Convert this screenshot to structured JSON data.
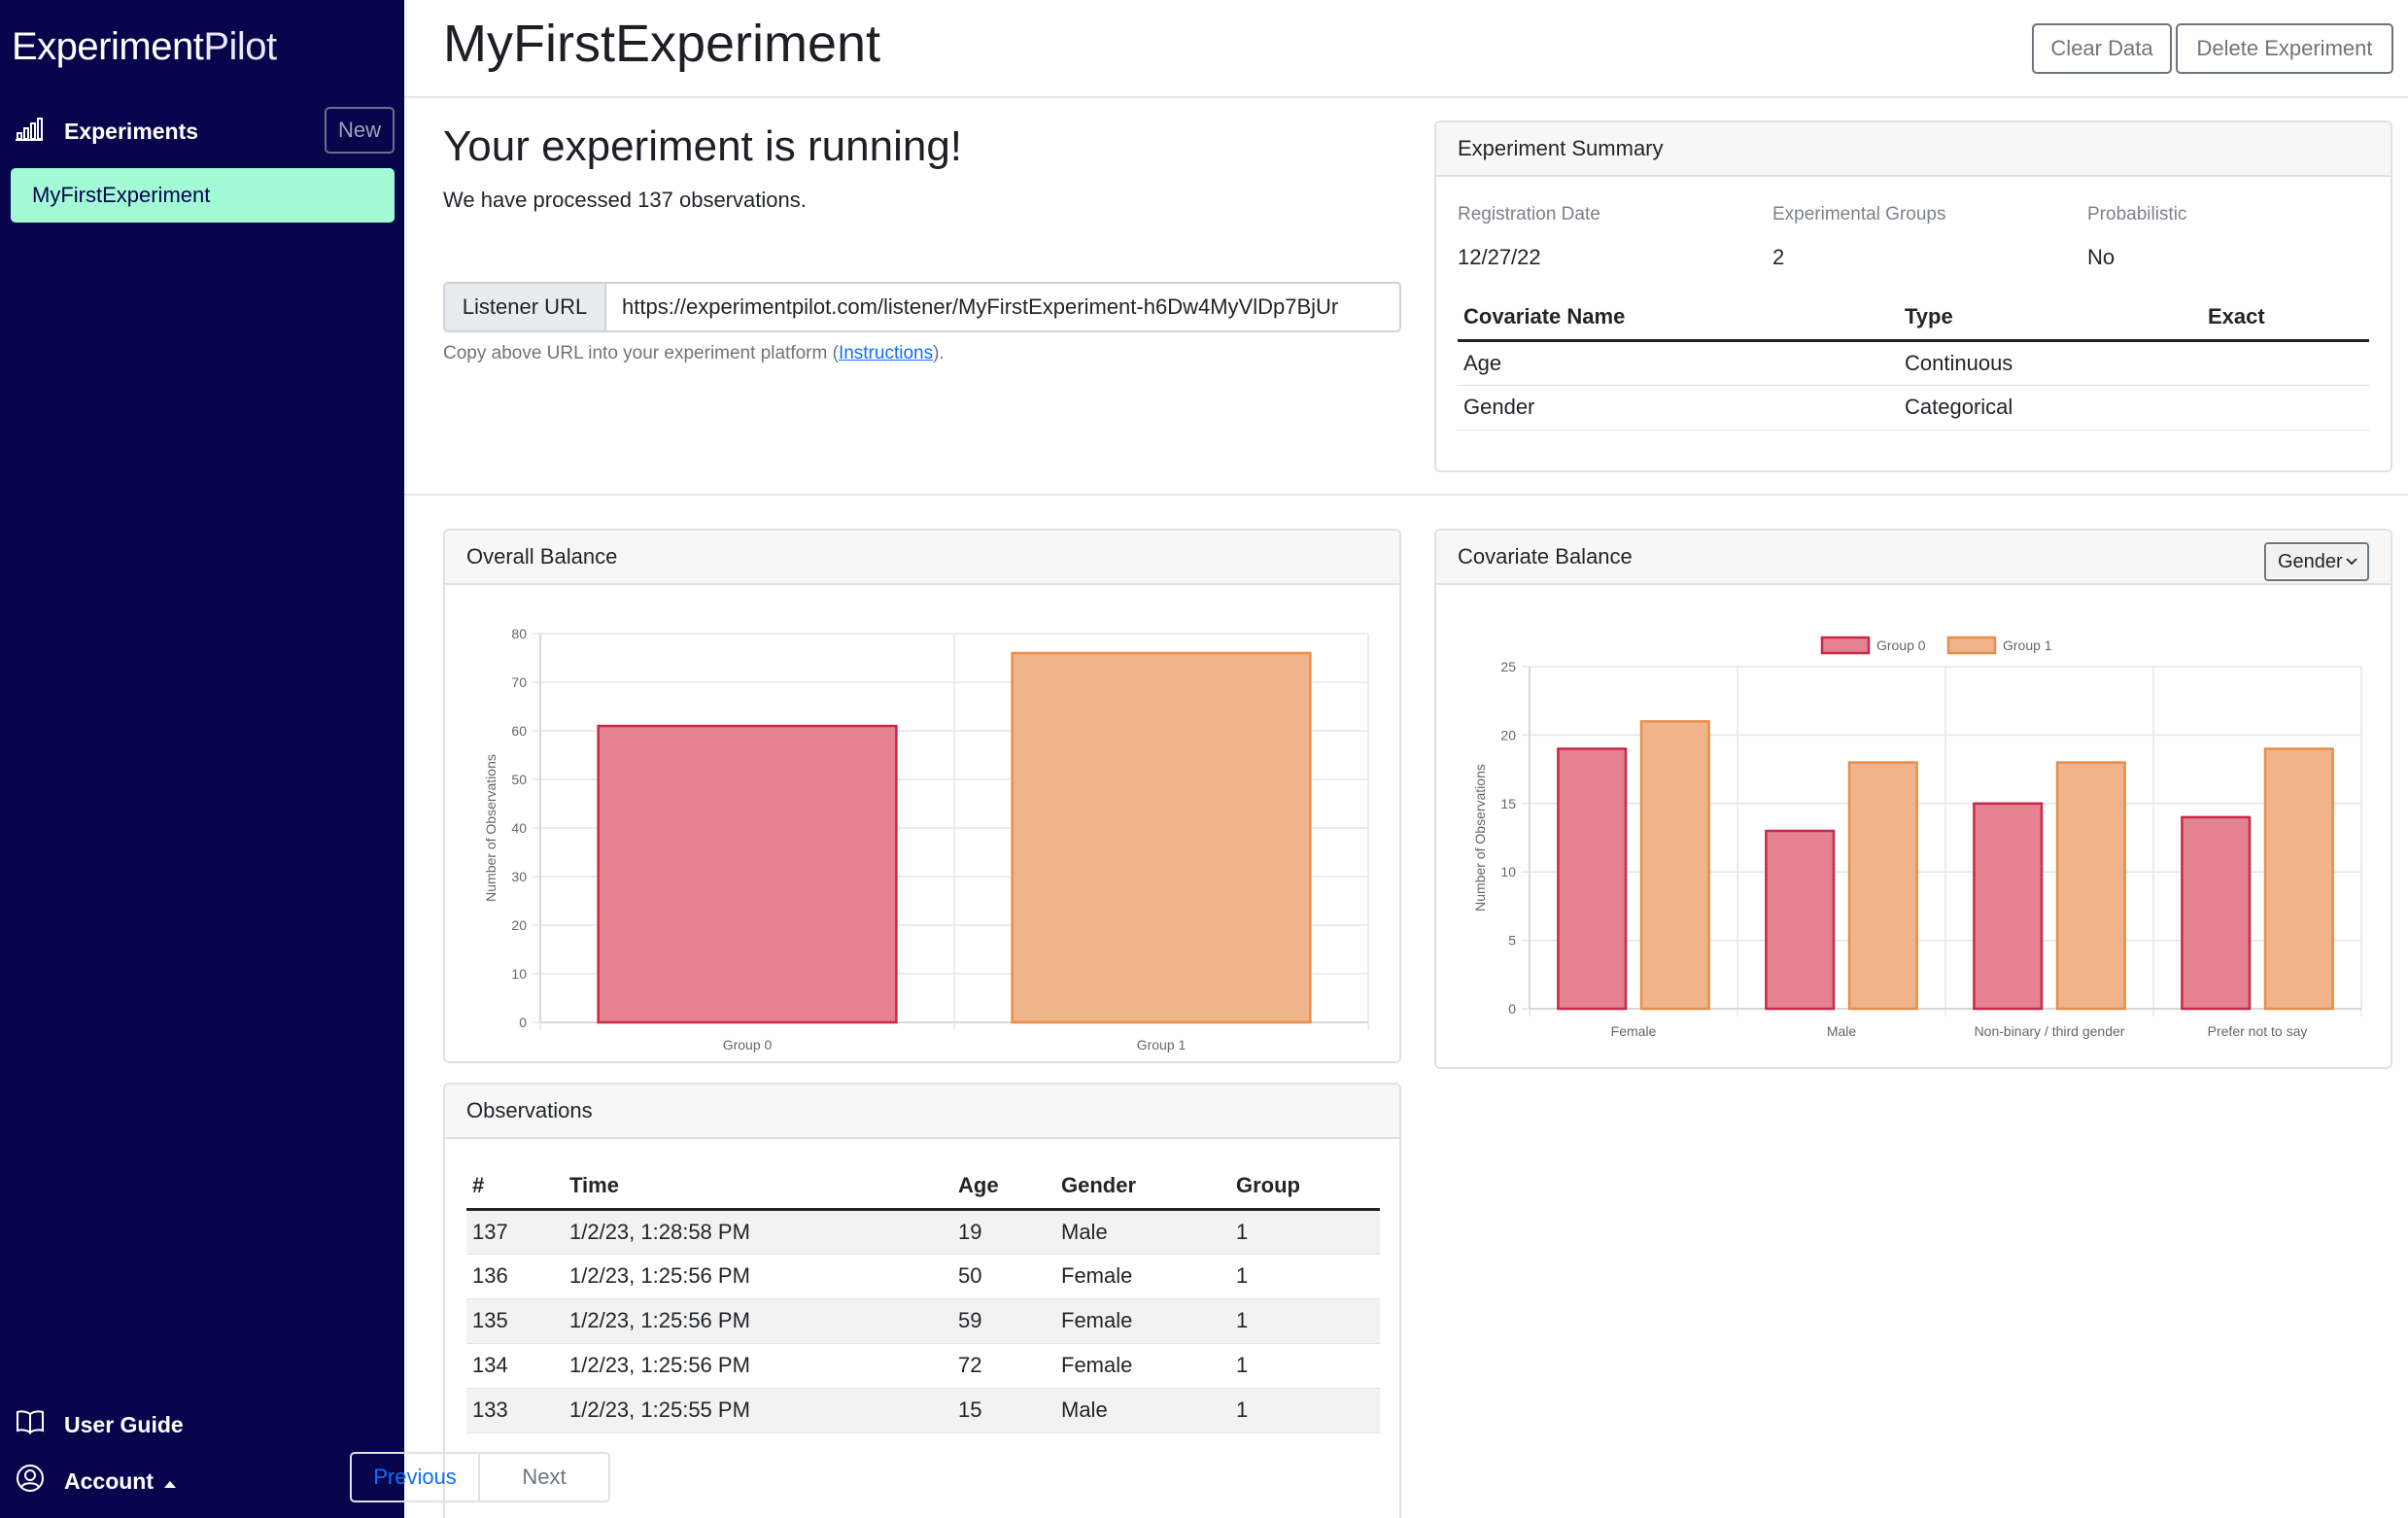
{
  "sidebar": {
    "brand_part1": "Experiment",
    "brand_part2": "Pilot",
    "experiments_label": "Experiments",
    "new_label": "New",
    "items": [
      {
        "label": "MyFirstExperiment"
      }
    ],
    "user_guide_label": "User Guide",
    "account_label": "Account"
  },
  "header": {
    "title": "MyFirstExperiment",
    "clear_label": "Clear Data",
    "delete_label": "Delete Experiment"
  },
  "status": {
    "title": "Your experiment is running!",
    "subtitle": "We have processed 137 observations.",
    "listener_label": "Listener URL",
    "listener_url": "https://experimentpilot.com/listener/MyFirstExperiment-h6Dw4MyVlDp7BjUr",
    "help_prefix": "Copy above URL into your experiment platform (",
    "help_link": "Instructions",
    "help_suffix": ")."
  },
  "summary": {
    "title": "Experiment Summary",
    "registration_label": "Registration Date",
    "registration_value": "12/27/22",
    "groups_label": "Experimental Groups",
    "groups_value": "2",
    "prob_label": "Probabilistic",
    "prob_value": "No",
    "columns": [
      "Covariate Name",
      "Type",
      "Exact"
    ],
    "rows": [
      [
        "Age",
        "Continuous",
        ""
      ],
      [
        "Gender",
        "Categorical",
        ""
      ]
    ]
  },
  "overall": {
    "title": "Overall Balance"
  },
  "covariate": {
    "title": "Covariate Balance",
    "selected": "Gender"
  },
  "observations": {
    "title": "Observations",
    "columns": [
      "#",
      "Time",
      "Age",
      "Gender",
      "Group"
    ],
    "rows": [
      [
        "137",
        "1/2/23, 1:28:58 PM",
        "19",
        "Male",
        "1"
      ],
      [
        "136",
        "1/2/23, 1:25:56 PM",
        "50",
        "Female",
        "1"
      ],
      [
        "135",
        "1/2/23, 1:25:56 PM",
        "59",
        "Female",
        "1"
      ],
      [
        "134",
        "1/2/23, 1:25:56 PM",
        "72",
        "Female",
        "1"
      ],
      [
        "133",
        "1/2/23, 1:25:55 PM",
        "15",
        "Male",
        "1"
      ]
    ],
    "previous_label": "Previous",
    "next_label": "Next"
  },
  "colors": {
    "sidebar_bg": "#07064c",
    "accent": "#a2fad6",
    "group0_fill": "#e4838f",
    "group0_stroke": "#c8284a",
    "group1_fill": "#efb489",
    "group1_stroke": "#e98d49"
  },
  "chart_data": [
    {
      "type": "bar",
      "categories": [
        "Group 0",
        "Group 1"
      ],
      "values": [
        61,
        76
      ],
      "ylabel": "Number of Observations",
      "ylim": [
        0,
        80
      ],
      "yticks": [
        0,
        10,
        20,
        30,
        40,
        50,
        60,
        70,
        80
      ],
      "grid": true
    },
    {
      "type": "bar",
      "categories": [
        "Female",
        "Male",
        "Non-binary / third gender",
        "Prefer not to say"
      ],
      "series": [
        {
          "name": "Group 0",
          "values": [
            19,
            13,
            15,
            14
          ]
        },
        {
          "name": "Group 1",
          "values": [
            21,
            18,
            18,
            19
          ]
        }
      ],
      "ylabel": "Number of Observations",
      "ylim": [
        0,
        25
      ],
      "yticks": [
        0,
        5,
        10,
        15,
        20,
        25
      ],
      "legend": "top",
      "grid": true
    }
  ]
}
